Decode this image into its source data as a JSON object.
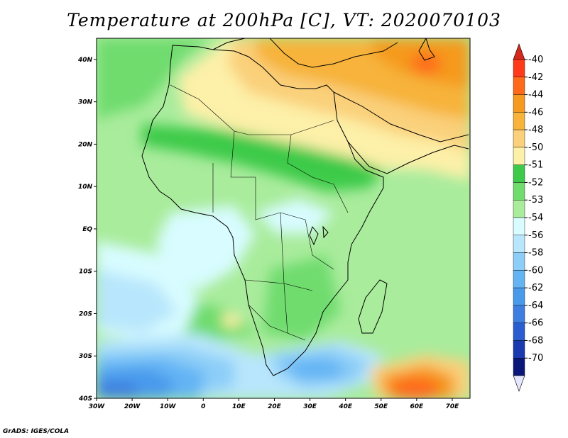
{
  "title": "Temperature at 200hPa [C], VT: 2020070103",
  "credit": "GrADS: IGES/COLA",
  "map": {
    "lon_range": [
      -30,
      75
    ],
    "lat_range": [
      -40,
      45
    ],
    "lon_ticks": [
      {
        "value": -30,
        "label": "30W"
      },
      {
        "value": -20,
        "label": "20W"
      },
      {
        "value": -10,
        "label": "10W"
      },
      {
        "value": 0,
        "label": "0"
      },
      {
        "value": 10,
        "label": "10E"
      },
      {
        "value": 20,
        "label": "20E"
      },
      {
        "value": 30,
        "label": "30E"
      },
      {
        "value": 40,
        "label": "40E"
      },
      {
        "value": 50,
        "label": "50E"
      },
      {
        "value": 60,
        "label": "60E"
      },
      {
        "value": 70,
        "label": "70E"
      }
    ],
    "lat_ticks": [
      {
        "value": 40,
        "label": "40N"
      },
      {
        "value": 30,
        "label": "30N"
      },
      {
        "value": 20,
        "label": "20N"
      },
      {
        "value": 10,
        "label": "10N"
      },
      {
        "value": 0,
        "label": "EQ"
      },
      {
        "value": -10,
        "label": "10S"
      },
      {
        "value": -20,
        "label": "20S"
      },
      {
        "value": -30,
        "label": "30S"
      },
      {
        "value": -40,
        "label": "40S"
      }
    ]
  },
  "colorbar": {
    "labels": [
      "-40",
      "-42",
      "-44",
      "-46",
      "-48",
      "-50",
      "-51",
      "-52",
      "-53",
      "-54",
      "-56",
      "-58",
      "-60",
      "-62",
      "-64",
      "-66",
      "-68",
      "-70"
    ],
    "colors": [
      "#ff3a1a",
      "#ff6a1a",
      "#f59a1e",
      "#f7b33a",
      "#fad07a",
      "#fdf0a8",
      "#3dca4a",
      "#70dc6e",
      "#a9ec9c",
      "#d8fcff",
      "#b8e6fc",
      "#8ccef8",
      "#64b4f4",
      "#4a9aec",
      "#3e7ee0",
      "#2a5ed0",
      "#1a3ab0",
      "#0a1678"
    ],
    "over_color": "#d7281d",
    "under_color": "#e6e6ff"
  }
}
